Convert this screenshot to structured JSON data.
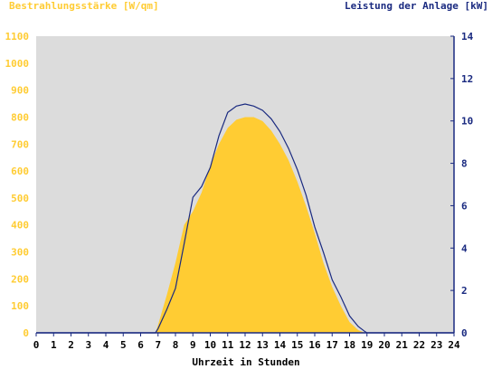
{
  "chart_data": {
    "type": "area",
    "left_axis_title": "Bestrahlungsstärke [W/qm]",
    "right_axis_title": "Leistung der Anlage [kW]",
    "xlabel": "Uhrzeit in Stunden",
    "x_range": [
      0,
      24
    ],
    "x_ticks": [
      "0",
      "1",
      "2",
      "3",
      "4",
      "5",
      "6",
      "7",
      "8",
      "9",
      "10",
      "11",
      "12",
      "13",
      "14",
      "15",
      "16",
      "17",
      "18",
      "19",
      "20",
      "21",
      "22",
      "23",
      "24"
    ],
    "left_range": [
      0,
      1100
    ],
    "left_ticks": [
      "0",
      "100",
      "200",
      "300",
      "400",
      "500",
      "600",
      "700",
      "800",
      "900",
      "1000",
      "1100"
    ],
    "right_range": [
      0,
      14
    ],
    "right_ticks": [
      "0",
      "2",
      "4",
      "6",
      "8",
      "10",
      "12",
      "14"
    ],
    "grid": false,
    "series": [
      {
        "axis": "left",
        "style": "area",
        "color": "#ffcc33",
        "x": [
          0,
          6.85,
          7.0,
          7.5,
          8.0,
          8.5,
          9.0,
          9.5,
          10.0,
          10.5,
          11.0,
          11.5,
          12.0,
          12.5,
          13.0,
          13.5,
          14.0,
          14.5,
          15.0,
          15.5,
          16.0,
          16.5,
          17.0,
          17.5,
          18.0,
          18.5,
          18.9,
          19.0,
          24
        ],
        "y": [
          0,
          0,
          30,
          140,
          260,
          400,
          450,
          520,
          620,
          700,
          760,
          790,
          800,
          800,
          785,
          750,
          700,
          640,
          560,
          470,
          370,
          260,
          170,
          100,
          40,
          10,
          0,
          0,
          0
        ]
      },
      {
        "axis": "right",
        "style": "line",
        "color": "#1a2a80",
        "x": [
          0,
          6.85,
          7.0,
          7.5,
          8.0,
          8.5,
          9.0,
          9.5,
          10.0,
          10.5,
          11.0,
          11.5,
          12.0,
          12.5,
          13.0,
          13.5,
          14.0,
          14.5,
          15.0,
          15.5,
          16.0,
          16.5,
          17.0,
          17.5,
          18.0,
          18.5,
          18.9,
          19.0,
          24
        ],
        "y": [
          0,
          0,
          0.2,
          1.1,
          2.1,
          4.2,
          6.4,
          6.9,
          7.8,
          9.3,
          10.4,
          10.7,
          10.8,
          10.7,
          10.5,
          10.1,
          9.5,
          8.7,
          7.7,
          6.5,
          5.0,
          3.8,
          2.5,
          1.7,
          0.8,
          0.3,
          0.05,
          0,
          0
        ]
      }
    ]
  }
}
